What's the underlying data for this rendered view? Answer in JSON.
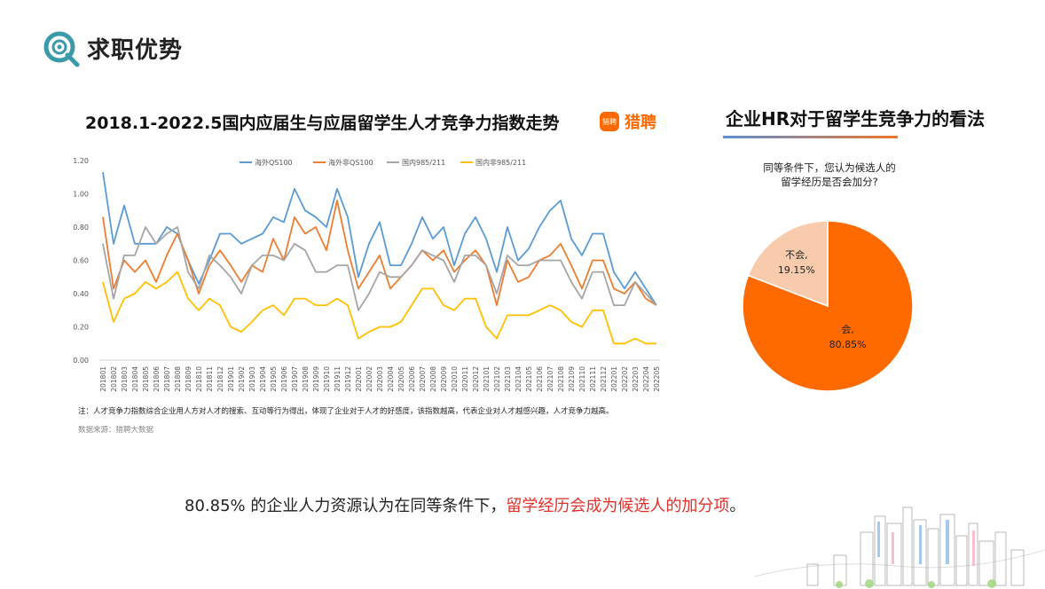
{
  "header": {
    "title": "求职优势",
    "icon": "target-magnifier-icon"
  },
  "left_panel": {
    "title": "2018.1-2022.5国内应届生与应届留学生人才竞争力指数走势",
    "brand_label": "猎聘",
    "brand_icon_text": "猎聘",
    "note": "注：人才竞争力指数综合企业用人方对人才的搜索、互动等行为得出，体现了企业对于人才的好感度，该指数越高，代表企业对人才越感兴趣，人才竞争力越高。",
    "source": "数据来源：猎聘大数据"
  },
  "right_panel": {
    "title": "企业HR对于留学生竞争力的看法",
    "question_line1": "同等条件下，您认为候选人的",
    "question_line2": "留学经历是否会加分?"
  },
  "bottom": {
    "prefix": "80.85% 的企业人力资源认为在同等条件下，",
    "highlight": "留学经历会成为候选人的加分项",
    "suffix": "。"
  },
  "colors": {
    "accent_orange": "#ff6a00",
    "teal": "#3a9aa8",
    "red_text": "#e4302b"
  },
  "chart_data": [
    {
      "type": "line",
      "ylim": [
        0,
        1.2
      ],
      "yticks": [
        "0.00",
        "0.20",
        "0.40",
        "0.60",
        "0.80",
        "1.00",
        "1.20"
      ],
      "legend_position": "top",
      "grid": false,
      "x": [
        "201801",
        "201802",
        "201803",
        "201804",
        "201805",
        "201806",
        "201807",
        "201808",
        "201809",
        "201810",
        "201811",
        "201812",
        "201901",
        "201902",
        "201903",
        "201904",
        "201905",
        "201906",
        "201907",
        "201908",
        "201909",
        "201910",
        "201911",
        "201912",
        "202001",
        "202002",
        "202003",
        "202004",
        "202005",
        "202006",
        "202007",
        "202008",
        "202009",
        "202010",
        "202011",
        "202012",
        "202101",
        "202102",
        "202103",
        "202104",
        "202105",
        "202106",
        "202107",
        "202108",
        "202109",
        "202110",
        "202111",
        "202112",
        "202201",
        "202202",
        "202203",
        "202204",
        "202205"
      ],
      "series": [
        {
          "name": "海外QS100",
          "color": "#5b9bd5",
          "values": [
            1.13,
            0.7,
            0.93,
            0.7,
            0.7,
            0.7,
            0.8,
            0.76,
            0.6,
            0.46,
            0.6,
            0.76,
            0.76,
            0.7,
            0.73,
            0.76,
            0.86,
            0.83,
            1.03,
            0.9,
            0.86,
            0.8,
            1.03,
            0.86,
            0.5,
            0.7,
            0.83,
            0.57,
            0.57,
            0.7,
            0.86,
            0.73,
            0.8,
            0.57,
            0.76,
            0.86,
            0.73,
            0.53,
            0.8,
            0.6,
            0.67,
            0.8,
            0.9,
            0.96,
            0.73,
            0.63,
            0.76,
            0.76,
            0.53,
            0.43,
            0.53,
            0.43,
            0.33
          ]
        },
        {
          "name": "海外非QS100",
          "color": "#ed7d31",
          "values": [
            0.86,
            0.43,
            0.6,
            0.53,
            0.6,
            0.47,
            0.63,
            0.76,
            0.6,
            0.4,
            0.57,
            0.66,
            0.57,
            0.47,
            0.57,
            0.53,
            0.73,
            0.6,
            0.86,
            0.76,
            0.8,
            0.66,
            0.96,
            0.66,
            0.43,
            0.53,
            0.63,
            0.43,
            0.5,
            0.57,
            0.66,
            0.6,
            0.66,
            0.53,
            0.6,
            0.66,
            0.57,
            0.33,
            0.6,
            0.47,
            0.5,
            0.6,
            0.63,
            0.7,
            0.57,
            0.43,
            0.6,
            0.6,
            0.43,
            0.4,
            0.47,
            0.37,
            0.33
          ]
        },
        {
          "name": "国内985/211",
          "color": "#a5a5a5",
          "values": [
            0.7,
            0.37,
            0.63,
            0.63,
            0.8,
            0.7,
            0.76,
            0.8,
            0.53,
            0.43,
            0.63,
            0.57,
            0.5,
            0.4,
            0.57,
            0.63,
            0.63,
            0.6,
            0.7,
            0.66,
            0.53,
            0.53,
            0.57,
            0.57,
            0.3,
            0.4,
            0.53,
            0.5,
            0.5,
            0.57,
            0.66,
            0.63,
            0.6,
            0.47,
            0.63,
            0.63,
            0.57,
            0.4,
            0.63,
            0.57,
            0.57,
            0.6,
            0.6,
            0.6,
            0.47,
            0.37,
            0.53,
            0.53,
            0.33,
            0.33,
            0.47,
            0.4,
            0.33
          ]
        },
        {
          "name": "国内非985/211",
          "color": "#ffc000",
          "values": [
            0.47,
            0.23,
            0.37,
            0.4,
            0.47,
            0.43,
            0.47,
            0.53,
            0.37,
            0.3,
            0.37,
            0.33,
            0.2,
            0.17,
            0.23,
            0.3,
            0.33,
            0.27,
            0.37,
            0.37,
            0.33,
            0.33,
            0.37,
            0.33,
            0.13,
            0.17,
            0.2,
            0.2,
            0.23,
            0.33,
            0.43,
            0.43,
            0.33,
            0.3,
            0.37,
            0.37,
            0.2,
            0.13,
            0.27,
            0.27,
            0.27,
            0.3,
            0.33,
            0.3,
            0.23,
            0.2,
            0.3,
            0.3,
            0.1,
            0.1,
            0.13,
            0.1,
            0.1
          ]
        }
      ]
    },
    {
      "type": "pie",
      "slices": [
        {
          "label": "会,",
          "pct_text": "80.85%",
          "value": 80.85,
          "color": "#ff6a00"
        },
        {
          "label": "不会,",
          "pct_text": "19.15%",
          "value": 19.15,
          "color": "#f8cbad"
        }
      ]
    }
  ]
}
